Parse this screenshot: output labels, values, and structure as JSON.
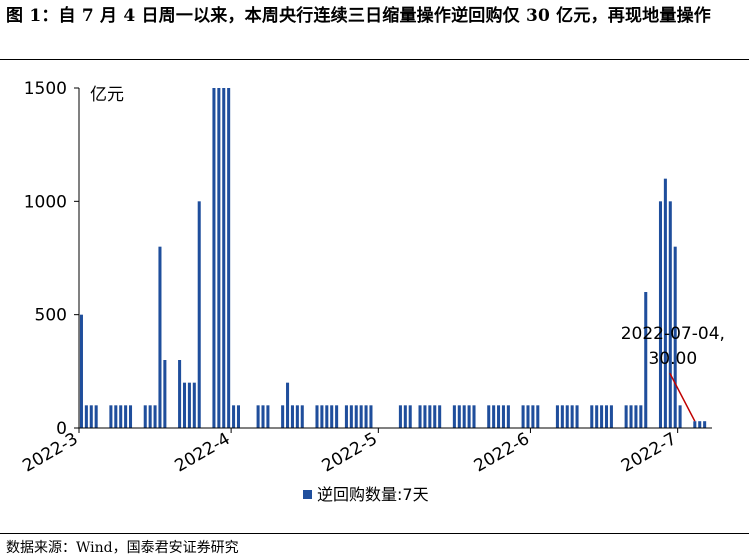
{
  "figure": {
    "title": "图 1：自 7 月 4 日周一以来，本周央行连续三日缩量操作逆回购仅 30 亿元，再现地量操作",
    "source": "数据来源：Wind，国泰君安证券研究"
  },
  "colors": {
    "bar": "#1F4E9C",
    "annotation_line": "#C00000",
    "axis": "#000000"
  },
  "chart_data": {
    "type": "bar",
    "unit_label": "亿元",
    "ylim": [
      0,
      1500
    ],
    "y_ticks": [
      0,
      500,
      1000,
      1500
    ],
    "x_ticks": [
      "2022-3",
      "2022-4",
      "2022-5",
      "2022-6",
      "2022-7"
    ],
    "x_tick_dates": [
      "2022-03-01",
      "2022-04-01",
      "2022-05-01",
      "2022-06-01",
      "2022-07-01"
    ],
    "x_range": [
      "2022-03-01",
      "2022-07-08"
    ],
    "legend": [
      "逆回购数量:7天"
    ],
    "legend_position": "bottom-center",
    "grid": false,
    "annotation": {
      "date": "2022-07-04",
      "value": 30,
      "text_line1": "2022-07-04,",
      "text_line2": "30.00"
    },
    "series": [
      {
        "name": "逆回购数量:7天",
        "points": [
          [
            "2022-03-01",
            500
          ],
          [
            "2022-03-02",
            100
          ],
          [
            "2022-03-03",
            100
          ],
          [
            "2022-03-04",
            100
          ],
          [
            "2022-03-07",
            100
          ],
          [
            "2022-03-08",
            100
          ],
          [
            "2022-03-09",
            100
          ],
          [
            "2022-03-10",
            100
          ],
          [
            "2022-03-11",
            100
          ],
          [
            "2022-03-14",
            100
          ],
          [
            "2022-03-15",
            100
          ],
          [
            "2022-03-16",
            100
          ],
          [
            "2022-03-17",
            800
          ],
          [
            "2022-03-18",
            300
          ],
          [
            "2022-03-21",
            300
          ],
          [
            "2022-03-22",
            200
          ],
          [
            "2022-03-23",
            200
          ],
          [
            "2022-03-24",
            200
          ],
          [
            "2022-03-25",
            1000
          ],
          [
            "2022-03-28",
            1500
          ],
          [
            "2022-03-29",
            1500
          ],
          [
            "2022-03-30",
            1500
          ],
          [
            "2022-03-31",
            1500
          ],
          [
            "2022-04-01",
            100
          ],
          [
            "2022-04-02",
            100
          ],
          [
            "2022-04-06",
            100
          ],
          [
            "2022-04-07",
            100
          ],
          [
            "2022-04-08",
            100
          ],
          [
            "2022-04-11",
            100
          ],
          [
            "2022-04-12",
            200
          ],
          [
            "2022-04-13",
            100
          ],
          [
            "2022-04-14",
            100
          ],
          [
            "2022-04-15",
            100
          ],
          [
            "2022-04-18",
            100
          ],
          [
            "2022-04-19",
            100
          ],
          [
            "2022-04-20",
            100
          ],
          [
            "2022-04-21",
            100
          ],
          [
            "2022-04-22",
            100
          ],
          [
            "2022-04-24",
            100
          ],
          [
            "2022-04-25",
            100
          ],
          [
            "2022-04-26",
            100
          ],
          [
            "2022-04-27",
            100
          ],
          [
            "2022-04-28",
            100
          ],
          [
            "2022-04-29",
            100
          ],
          [
            "2022-05-05",
            100
          ],
          [
            "2022-05-06",
            100
          ],
          [
            "2022-05-07",
            100
          ],
          [
            "2022-05-09",
            100
          ],
          [
            "2022-05-10",
            100
          ],
          [
            "2022-05-11",
            100
          ],
          [
            "2022-05-12",
            100
          ],
          [
            "2022-05-13",
            100
          ],
          [
            "2022-05-16",
            100
          ],
          [
            "2022-05-17",
            100
          ],
          [
            "2022-05-18",
            100
          ],
          [
            "2022-05-19",
            100
          ],
          [
            "2022-05-20",
            100
          ],
          [
            "2022-05-23",
            100
          ],
          [
            "2022-05-24",
            100
          ],
          [
            "2022-05-25",
            100
          ],
          [
            "2022-05-26",
            100
          ],
          [
            "2022-05-27",
            100
          ],
          [
            "2022-05-30",
            100
          ],
          [
            "2022-05-31",
            100
          ],
          [
            "2022-06-01",
            100
          ],
          [
            "2022-06-02",
            100
          ],
          [
            "2022-06-06",
            100
          ],
          [
            "2022-06-07",
            100
          ],
          [
            "2022-06-08",
            100
          ],
          [
            "2022-06-09",
            100
          ],
          [
            "2022-06-10",
            100
          ],
          [
            "2022-06-13",
            100
          ],
          [
            "2022-06-14",
            100
          ],
          [
            "2022-06-15",
            100
          ],
          [
            "2022-06-16",
            100
          ],
          [
            "2022-06-17",
            100
          ],
          [
            "2022-06-20",
            100
          ],
          [
            "2022-06-21",
            100
          ],
          [
            "2022-06-22",
            100
          ],
          [
            "2022-06-23",
            100
          ],
          [
            "2022-06-24",
            600
          ],
          [
            "2022-06-27",
            1000
          ],
          [
            "2022-06-28",
            1100
          ],
          [
            "2022-06-29",
            1000
          ],
          [
            "2022-06-30",
            800
          ],
          [
            "2022-07-01",
            100
          ],
          [
            "2022-07-04",
            30
          ],
          [
            "2022-07-05",
            30
          ],
          [
            "2022-07-06",
            30
          ]
        ]
      }
    ]
  }
}
